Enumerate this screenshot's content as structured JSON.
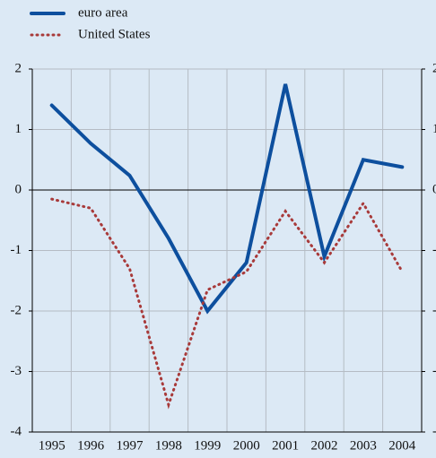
{
  "chart_data": {
    "type": "line",
    "categories": [
      "1995",
      "1996",
      "1997",
      "1998",
      "1999",
      "2000",
      "2001",
      "2002",
      "2003",
      "2004"
    ],
    "series": [
      {
        "name": "euro area",
        "color": "#0d4f9e",
        "values": [
          1.4,
          0.77,
          0.24,
          -0.8,
          -2.0,
          -1.2,
          1.75,
          -1.1,
          0.5,
          0.38
        ]
      },
      {
        "name": "United States",
        "color": "#a83a3a",
        "values": [
          -0.15,
          -0.3,
          -1.3,
          -3.55,
          -1.65,
          -1.35,
          -0.35,
          -1.2,
          -0.22,
          -1.35
        ]
      }
    ],
    "ylim": [
      -4,
      2
    ],
    "yticks": [
      -4,
      -3,
      -2,
      -1,
      0,
      1,
      2
    ],
    "grid": true,
    "legend": "top-left"
  }
}
